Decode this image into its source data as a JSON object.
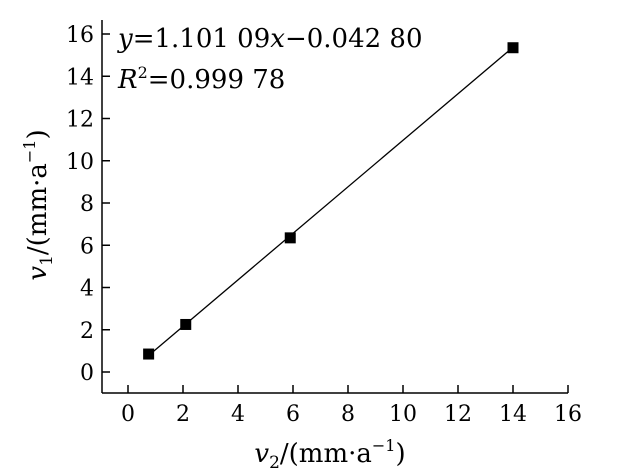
{
  "chart_data": {
    "type": "scatter",
    "title": "",
    "xlabel": {
      "var": "v",
      "sub": "2",
      "unit": "/(mm·a",
      "exp": "−1",
      "close": ")"
    },
    "ylabel": {
      "var": "v",
      "sub": "1",
      "unit": "/(mm·a",
      "exp": "−1",
      "close": ")"
    },
    "xlim": [
      0,
      16
    ],
    "ylim": [
      0,
      16
    ],
    "xticks": [
      "0",
      "2",
      "4",
      "6",
      "8",
      "10",
      "12",
      "14",
      "16"
    ],
    "yticks": [
      "0",
      "2",
      "4",
      "6",
      "8",
      "10",
      "12",
      "14",
      "16"
    ],
    "grid": false,
    "points": [
      {
        "x": 0.75,
        "y": 0.85
      },
      {
        "x": 2.1,
        "y": 2.25
      },
      {
        "x": 5.9,
        "y": 6.35
      },
      {
        "x": 14.0,
        "y": 15.35
      }
    ],
    "fit": {
      "slope": 1.10109,
      "intercept": -0.0428,
      "x_range": [
        0.75,
        14.0
      ]
    },
    "annotations": {
      "equation": {
        "y": "y",
        "eq": "=1.101 09",
        "x": "x",
        "rest": "−0.042 80"
      },
      "r2": {
        "r": "R",
        "sup": "2",
        "rest": "=0.999 78"
      }
    },
    "marker": "square",
    "color": "#000000"
  }
}
